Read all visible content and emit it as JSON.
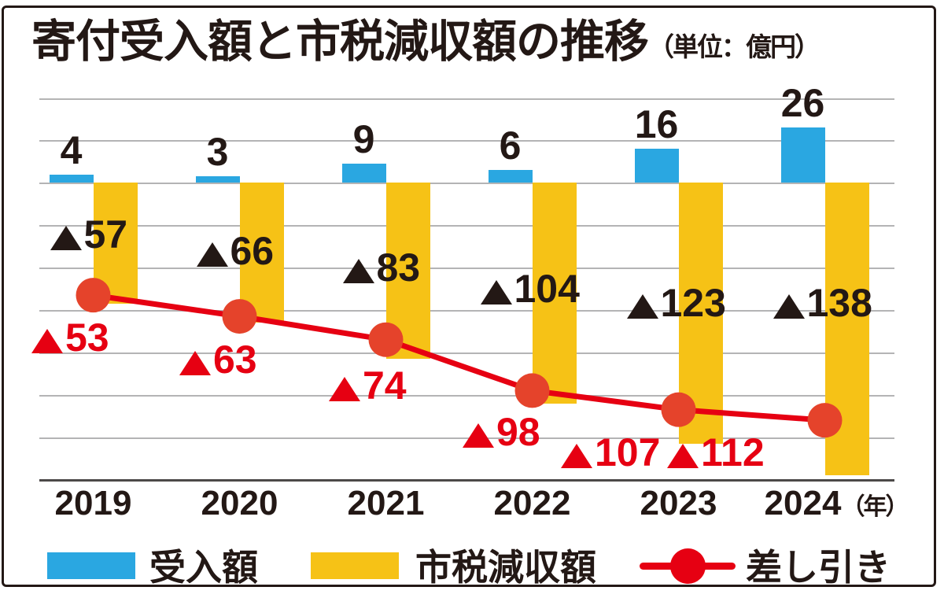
{
  "title": {
    "main": "寄付受入額と市税減収額の推移",
    "unit": "（単位：億円）"
  },
  "x_axis": {
    "unit_suffix": "（年）"
  },
  "legend": {
    "items": [
      {
        "label": "受入額",
        "type": "bar",
        "color": "#2aa7e1"
      },
      {
        "label": "市税減収額",
        "type": "bar",
        "color": "#f6c216"
      },
      {
        "label": "差し引き",
        "type": "line",
        "color": "#e60012"
      }
    ]
  },
  "negative_mark": "▲",
  "chart_data": {
    "type": "bar+line",
    "title": "寄付受入額と市税減収額の推移",
    "unit": "億円",
    "categories": [
      "2019",
      "2020",
      "2021",
      "2022",
      "2023",
      "2024"
    ],
    "series": [
      {
        "name": "受入額",
        "type": "bar",
        "color": "#2aa7e1",
        "values": [
          4,
          3,
          9,
          6,
          16,
          26
        ]
      },
      {
        "name": "市税減収額",
        "type": "bar",
        "color": "#f6c216",
        "values": [
          -57,
          -66,
          -83,
          -104,
          -123,
          -138
        ],
        "label_prefix": "▲"
      },
      {
        "name": "差し引き",
        "type": "line",
        "color": "#e60012",
        "dot_color": "#e5432b",
        "values": [
          -53,
          -63,
          -74,
          -98,
          -107,
          -112
        ],
        "label_prefix": "▲"
      }
    ],
    "ylim": [
      -140,
      40
    ],
    "gridline_step": 20,
    "grid": true,
    "legend_position": "bottom"
  }
}
